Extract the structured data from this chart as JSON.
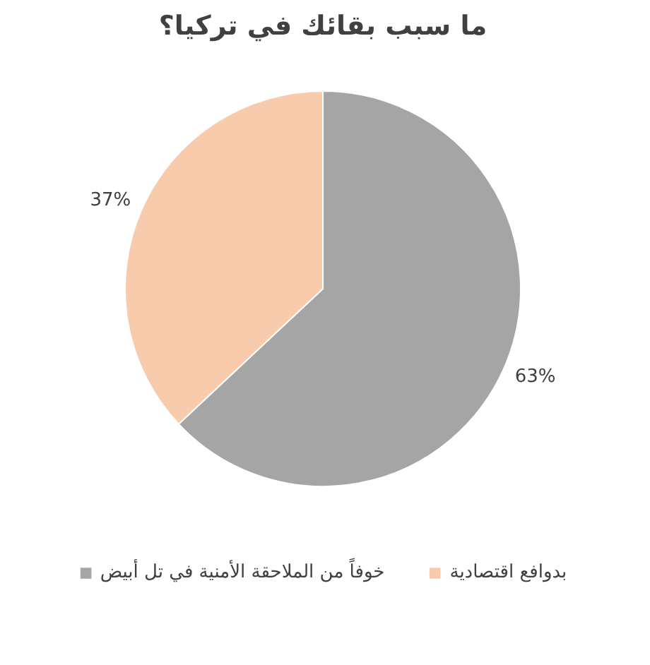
{
  "chart_data": {
    "type": "pie",
    "title": "ما سبب بقائك في تركيا؟",
    "categories": [
      "خوفاً من الملاحقة الأمنية في تل أبيض",
      "بدوافع اقتصادية"
    ],
    "values": [
      63,
      37
    ],
    "colors": [
      "#a5a5a5",
      "#f8cbad"
    ],
    "value_labels": [
      "63%",
      "37%"
    ],
    "legend": "bottom"
  }
}
